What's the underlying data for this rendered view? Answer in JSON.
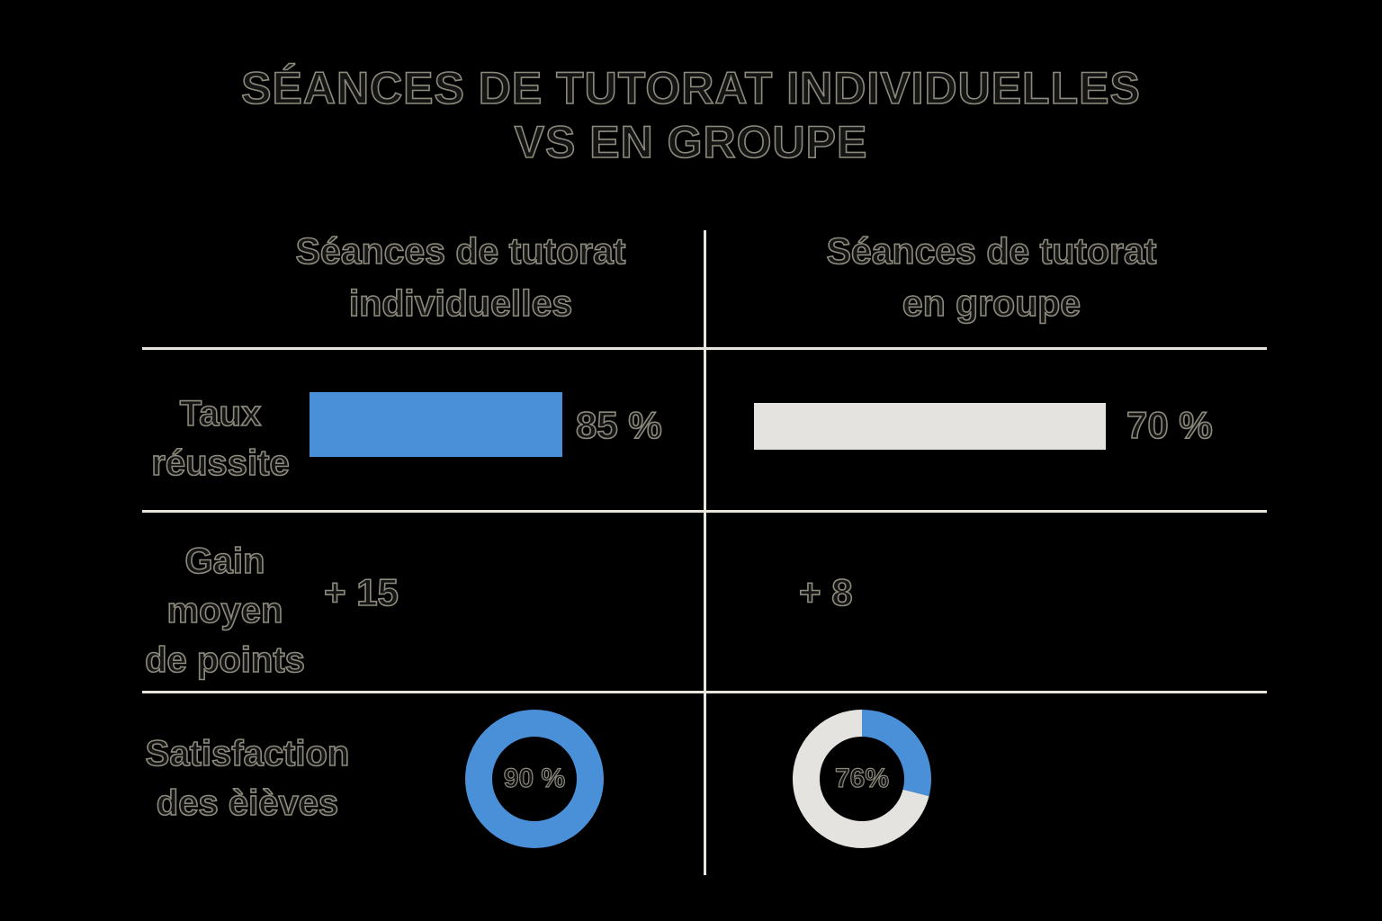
{
  "title": {
    "line1": "SÉANCES DE TUTORAT INDIVIDUELLES",
    "line2": "VS EN GROUPE"
  },
  "colors": {
    "background": "#000000",
    "individual_accent": "#4a90d9",
    "group_accent": "#e4e3df",
    "rule": "#e8e6dc",
    "text_outline": "#8c8a7c"
  },
  "columns": [
    {
      "line1": "Séances de tutorat",
      "line2": "individuelles"
    },
    {
      "line1": "Séances de tutorat",
      "line2": "en groupe"
    }
  ],
  "rows": {
    "success": {
      "label_lines": [
        "Taux",
        "réussite"
      ]
    },
    "gain": {
      "label_lines": [
        "Gain",
        "moyen",
        "de points"
      ]
    },
    "satisfaction": {
      "label_lines": [
        "Satisfaction",
        "des èièves"
      ]
    }
  },
  "chart_data": {
    "type": "table",
    "columns": [
      "Séances de tutorat individuelles",
      "Séances de tutorat en groupe"
    ],
    "rows": [
      "Taux réussite",
      "Gain moyen de points",
      "Satisfaction des èièves"
    ],
    "success_rate": {
      "individual": {
        "value": 85,
        "label": "85 %"
      },
      "group": {
        "value": 70,
        "label": "70 %"
      }
    },
    "points_gain": {
      "individual": {
        "value": 15,
        "label": "+ 15"
      },
      "group": {
        "value": 8,
        "label": "+ 8"
      }
    },
    "satisfaction": {
      "individual": {
        "value": 90,
        "label": "90 %"
      },
      "group": {
        "value": 76,
        "label": "76%"
      }
    }
  }
}
